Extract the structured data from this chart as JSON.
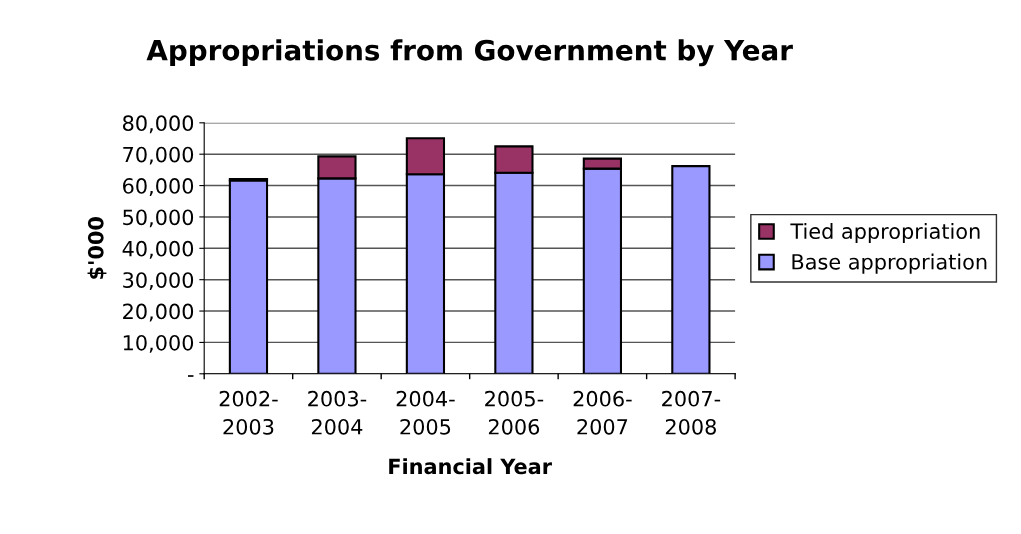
{
  "chart_data": {
    "type": "bar",
    "title": "Appropriations from Government by Year",
    "xlabel": "Financial Year",
    "ylabel": "$'000",
    "categories": [
      "2002-\n2003",
      "2003-\n2004",
      "2004-\n2005",
      "2005-\n2006",
      "2006-\n2007",
      "2007-\n2008"
    ],
    "stacked": true,
    "series": [
      {
        "name": "Base appropriation",
        "color": "#9999ff",
        "values": [
          61600,
          62300,
          63600,
          64100,
          65400,
          66200
        ]
      },
      {
        "name": "Tied appropriation",
        "color": "#993366",
        "values": [
          500,
          7000,
          11500,
          8400,
          3200,
          null
        ]
      }
    ],
    "ylim": [
      0,
      80000
    ],
    "yticks": [
      {
        "value": 0,
        "label": "-"
      },
      {
        "value": 10000,
        "label": "10,000"
      },
      {
        "value": 20000,
        "label": "20,000"
      },
      {
        "value": 30000,
        "label": "30,000"
      },
      {
        "value": 40000,
        "label": "40,000"
      },
      {
        "value": 50000,
        "label": "50,000"
      },
      {
        "value": 60000,
        "label": "60,000"
      },
      {
        "value": 70000,
        "label": "70,000"
      },
      {
        "value": 80000,
        "label": "80,000"
      }
    ],
    "grid": "y",
    "legend": "right"
  }
}
